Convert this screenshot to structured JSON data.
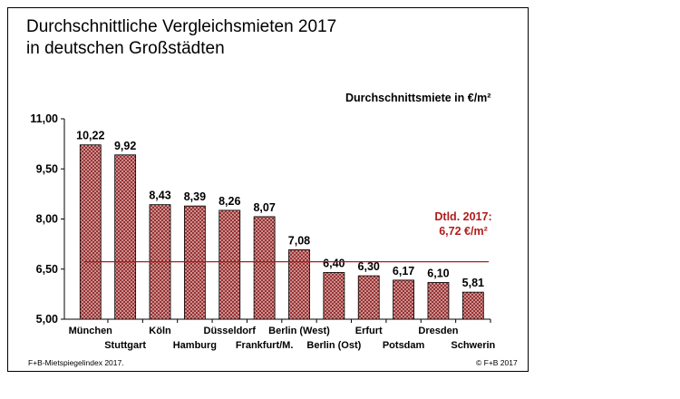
{
  "chart_data": {
    "type": "bar",
    "title": "Durchschnittliche Vergleichsmieten 2017",
    "subtitle": "in deutschen Großstädten",
    "unit_label": "Durchschnittsmiete in €/m²",
    "categories": [
      "München",
      "Stuttgart",
      "Köln",
      "Hamburg",
      "Düsseldorf",
      "Frankfurt/M.",
      "Berlin (West)",
      "Berlin (Ost)",
      "Erfurt",
      "Potsdam",
      "Dresden",
      "Schwerin"
    ],
    "values": [
      10.22,
      9.92,
      8.43,
      8.39,
      8.26,
      8.07,
      7.08,
      6.4,
      6.3,
      6.17,
      6.1,
      5.81
    ],
    "value_labels": [
      "10,22",
      "9,92",
      "8,43",
      "8,39",
      "8,26",
      "8,07",
      "7,08",
      "6,40",
      "6,30",
      "6,17",
      "6,10",
      "5,81"
    ],
    "ylim": [
      5.0,
      11.0
    ],
    "y_ticks": [
      5.0,
      6.5,
      8.0,
      9.5,
      11.0
    ],
    "y_tick_labels": [
      "5,00",
      "6,50",
      "8,00",
      "9,50",
      "11,00"
    ],
    "grid": false,
    "reference_line": {
      "value": 6.72,
      "label_line1": "Dtld. 2017:",
      "label_line2": "6,72 €/m²",
      "color": "#b01c1c"
    },
    "bar_fill": "#d9a7a7",
    "bar_pattern_color": "#8a1c1c",
    "footnote_left": "F+B-Mietspiegelindex 2017.",
    "footnote_right": "© F+B 2017"
  }
}
